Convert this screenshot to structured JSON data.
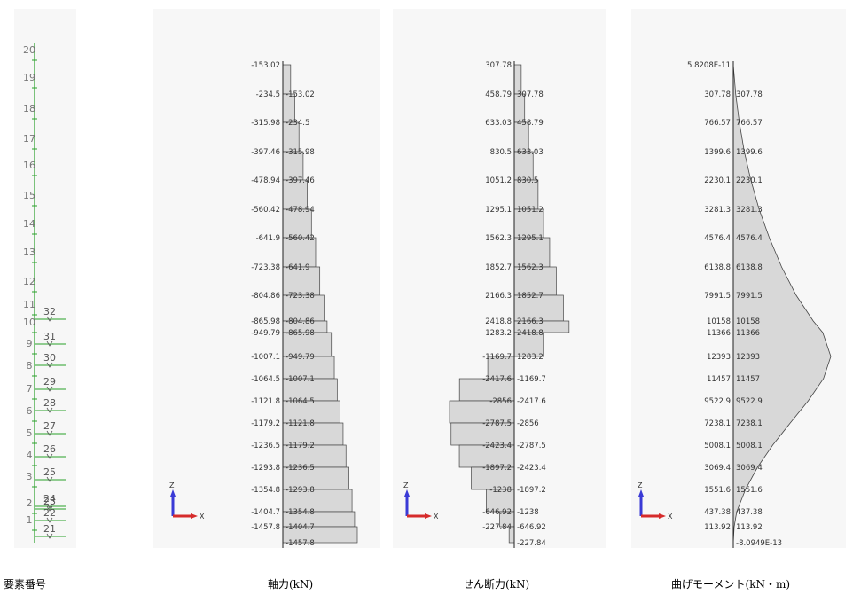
{
  "captions": {
    "elements": "要素番号",
    "axial": "軸力(kN)",
    "shear": "せん断力(kN)",
    "moment": "曲げモーメント(kN・m)"
  },
  "axes": {
    "x": "X",
    "z": "Z"
  },
  "element_numbers": {
    "column_nodes": [
      "20",
      "19",
      "18",
      "17",
      "16",
      "15",
      "14",
      "13",
      "12",
      "11",
      "10",
      "9",
      "8",
      "7",
      "6",
      "5",
      "4",
      "3",
      "2",
      "1"
    ],
    "pile_elements": [
      "32",
      "31",
      "30",
      "29",
      "28",
      "27",
      "26",
      "25",
      "24",
      "23",
      "22",
      "21"
    ]
  },
  "colors": {
    "fill": "#d8d8d8",
    "stroke": "#000000",
    "member": "#2aa02a",
    "axis_x": "#d62b2b",
    "axis_z": "#3a3ad6",
    "panel": "#f7f7f7"
  },
  "chart_data": [
    {
      "type": "bar",
      "orientation": "horizontal",
      "title": "軸力(kN)",
      "segments": [
        {
          "top": -153.02,
          "bottom": -153.02
        },
        {
          "top": -234.5,
          "bottom": -234.5
        },
        {
          "top": -315.98,
          "bottom": -315.98
        },
        {
          "top": -397.46,
          "bottom": -397.46
        },
        {
          "top": -478.94,
          "bottom": -478.94
        },
        {
          "top": -560.42,
          "bottom": -560.42
        },
        {
          "top": -641.9,
          "bottom": -641.9
        },
        {
          "top": -723.38,
          "bottom": -723.38
        },
        {
          "top": -804.86,
          "bottom": -804.86
        },
        {
          "top": -865.98,
          "bottom": -865.98
        },
        {
          "top": -949.79,
          "bottom": -949.79
        },
        {
          "top": -1007.1,
          "bottom": -1007.1
        },
        {
          "top": -1064.5,
          "bottom": -1064.5
        },
        {
          "top": -1121.8,
          "bottom": -1121.8
        },
        {
          "top": -1179.2,
          "bottom": -1179.2
        },
        {
          "top": -1236.5,
          "bottom": -1236.5
        },
        {
          "top": -1293.8,
          "bottom": -1293.8
        },
        {
          "top": -1354.8,
          "bottom": -1354.8
        },
        {
          "top": -1404.7,
          "bottom": -1404.7
        },
        {
          "top": -1457.8,
          "bottom": -1457.8
        }
      ],
      "labels": [
        {
          "left": "-153.02",
          "right": ""
        },
        {
          "left": "-234.5",
          "right": "-153.02"
        },
        {
          "left": "-315.98",
          "right": "-234.5"
        },
        {
          "left": "-397.46",
          "right": "-315.98"
        },
        {
          "left": "-478.94",
          "right": "-397.46"
        },
        {
          "left": "-560.42",
          "right": "-478.94"
        },
        {
          "left": "-641.9",
          "right": "-560.42"
        },
        {
          "left": "-723.38",
          "right": "-641.9"
        },
        {
          "left": "-804.86",
          "right": "-723.38"
        },
        {
          "left": "-865.98",
          "right": "-804.86"
        },
        {
          "left": "-949.79",
          "right": "-865.98"
        },
        {
          "left": "-1007.1",
          "right": "-949.79"
        },
        {
          "left": "-1064.5",
          "right": "-1007.1"
        },
        {
          "left": "-1121.8",
          "right": "-1064.5"
        },
        {
          "left": "-1179.2",
          "right": "-1121.8"
        },
        {
          "left": "-1236.5",
          "right": "-1179.2"
        },
        {
          "left": "-1293.8",
          "right": "-1236.5"
        },
        {
          "left": "-1354.8",
          "right": "-1293.8"
        },
        {
          "left": "-1404.7",
          "right": "-1354.8"
        },
        {
          "left": "-1457.8",
          "right": "-1404.7"
        },
        {
          "left": "",
          "right": "-1457.8"
        }
      ]
    },
    {
      "type": "bar",
      "orientation": "horizontal",
      "title": "せん断力(kN)",
      "segments": [
        {
          "top": 307.78,
          "bottom": 307.78
        },
        {
          "top": 458.79,
          "bottom": 458.79
        },
        {
          "top": 633.03,
          "bottom": 633.03
        },
        {
          "top": 830.5,
          "bottom": 830.5
        },
        {
          "top": 1051.2,
          "bottom": 1051.2
        },
        {
          "top": 1295.1,
          "bottom": 1295.1
        },
        {
          "top": 1562.3,
          "bottom": 1562.3
        },
        {
          "top": 1852.7,
          "bottom": 1852.7
        },
        {
          "top": 2166.3,
          "bottom": 2166.3
        },
        {
          "top": 2418.8,
          "bottom": 2418.8
        },
        {
          "top": 1283.2,
          "bottom": 1283.2
        },
        {
          "top": -1169.7,
          "bottom": -1169.7
        },
        {
          "top": -2417.6,
          "bottom": -2417.6
        },
        {
          "top": -2856,
          "bottom": -2856
        },
        {
          "top": -2787.5,
          "bottom": -2787.5
        },
        {
          "top": -2423.4,
          "bottom": -2423.4
        },
        {
          "top": -1897.2,
          "bottom": -1897.2
        },
        {
          "top": -1238,
          "bottom": -1238
        },
        {
          "top": -646.92,
          "bottom": -646.92
        },
        {
          "top": -227.84,
          "bottom": -227.84
        }
      ],
      "labels": [
        {
          "left": "307.78",
          "right": ""
        },
        {
          "left": "458.79",
          "right": "307.78"
        },
        {
          "left": "633.03",
          "right": "458.79"
        },
        {
          "left": "830.5",
          "right": "633.03"
        },
        {
          "left": "1051.2",
          "right": "830.5"
        },
        {
          "left": "1295.1",
          "right": "1051.2"
        },
        {
          "left": "1562.3",
          "right": "1295.1"
        },
        {
          "left": "1852.7",
          "right": "1562.3"
        },
        {
          "left": "2166.3",
          "right": "1852.7"
        },
        {
          "left": "2418.8",
          "right": "2166.3"
        },
        {
          "left": "1283.2",
          "right": "2418.8"
        },
        {
          "left": "-1169.7",
          "right": "1283.2"
        },
        {
          "left": "-2417.6",
          "right": "-1169.7"
        },
        {
          "left": "-2856",
          "right": "-2417.6"
        },
        {
          "left": "-2787.5",
          "right": "-2856"
        },
        {
          "left": "-2423.4",
          "right": "-2787.5"
        },
        {
          "left": "-1897.2",
          "right": "-2423.4"
        },
        {
          "left": "-1238",
          "right": "-1897.2"
        },
        {
          "left": "-646.92",
          "right": "-1238"
        },
        {
          "left": "-227.84",
          "right": "-646.92"
        },
        {
          "left": "",
          "right": "-227.84"
        }
      ]
    },
    {
      "type": "area",
      "orientation": "vertical-profile",
      "title": "曲げモーメント(kN・m)",
      "values": [
        0,
        307.78,
        766.57,
        1399.6,
        2230.1,
        3281.3,
        4576.4,
        6138.8,
        7991.5,
        10158,
        11366,
        12393,
        11457,
        9522.9,
        7238.1,
        5008.1,
        3069.4,
        1551.6,
        437.38,
        113.92,
        0
      ],
      "labels": [
        {
          "left": "5.8208E-11",
          "right": ""
        },
        {
          "left": "307.78",
          "right": "307.78"
        },
        {
          "left": "766.57",
          "right": "766.57"
        },
        {
          "left": "1399.6",
          "right": "1399.6"
        },
        {
          "left": "2230.1",
          "right": "2230.1"
        },
        {
          "left": "3281.3",
          "right": "3281.3"
        },
        {
          "left": "4576.4",
          "right": "4576.4"
        },
        {
          "left": "6138.8",
          "right": "6138.8"
        },
        {
          "left": "7991.5",
          "right": "7991.5"
        },
        {
          "left": "10158",
          "right": "10158"
        },
        {
          "left": "11366",
          "right": "11366"
        },
        {
          "left": "12393",
          "right": "12393"
        },
        {
          "left": "11457",
          "right": "11457"
        },
        {
          "left": "9522.9",
          "right": "9522.9"
        },
        {
          "left": "7238.1",
          "right": "7238.1"
        },
        {
          "left": "5008.1",
          "right": "5008.1"
        },
        {
          "left": "3069.4",
          "right": "3069.4"
        },
        {
          "left": "1551.6",
          "right": "1551.6"
        },
        {
          "left": "437.38",
          "right": "437.38"
        },
        {
          "left": "113.92",
          "right": "113.92"
        },
        {
          "left": "",
          "right": "-8.0949E-13"
        }
      ]
    }
  ]
}
